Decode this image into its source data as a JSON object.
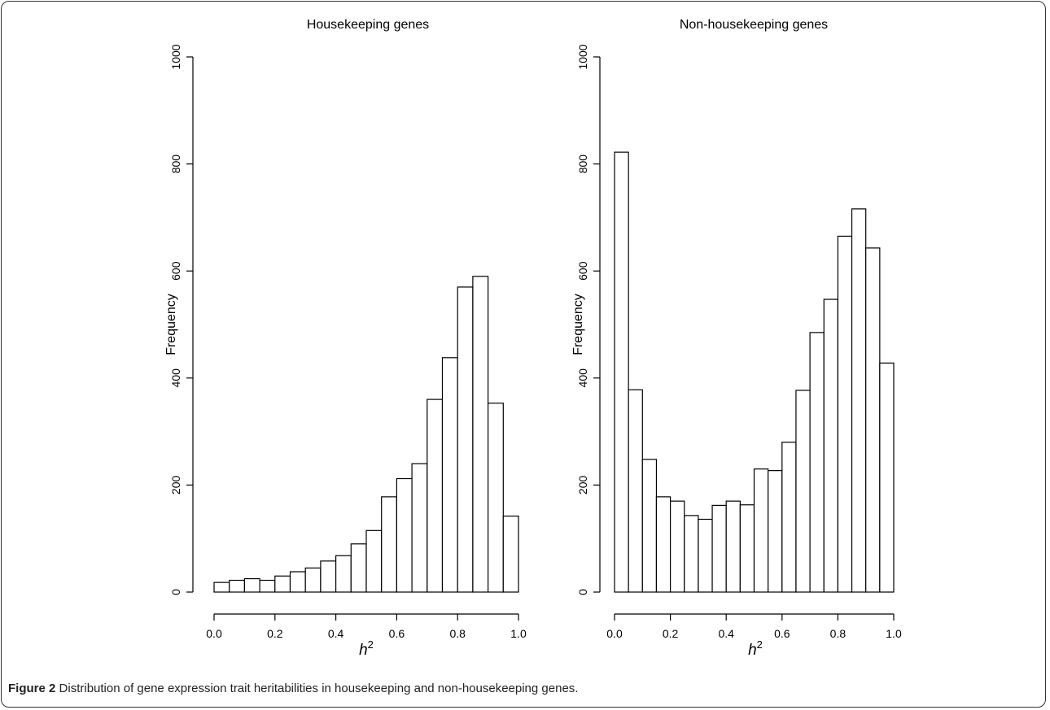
{
  "caption": {
    "label": "Figure 2",
    "text": "Distribution of gene expression trait heritabilities in housekeeping and non-housekeeping genes."
  },
  "chart_data": [
    {
      "type": "bar",
      "title": "Housekeeping genes",
      "ylabel": "Frequency",
      "xlabel": "h",
      "xlabel_sup": "2",
      "xlim": [
        0,
        1
      ],
      "ylim": [
        0,
        1000
      ],
      "xticks": [
        "0.0",
        "0.2",
        "0.4",
        "0.6",
        "0.8",
        "1.0"
      ],
      "yticks": [
        "0",
        "200",
        "400",
        "600",
        "800",
        "1000"
      ],
      "bin_width": 0.05,
      "bin_starts": [
        0.0,
        0.05,
        0.1,
        0.15,
        0.2,
        0.25,
        0.3,
        0.35,
        0.4,
        0.45,
        0.5,
        0.55,
        0.6,
        0.65,
        0.7,
        0.75,
        0.8,
        0.85,
        0.9,
        0.95
      ],
      "values": [
        18,
        22,
        25,
        22,
        30,
        38,
        45,
        58,
        68,
        90,
        115,
        178,
        212,
        240,
        360,
        438,
        570,
        590,
        353,
        142
      ]
    },
    {
      "type": "bar",
      "title": "Non-housekeeping genes",
      "ylabel": "Frequency",
      "xlabel": "h",
      "xlabel_sup": "2",
      "xlim": [
        0,
        1
      ],
      "ylim": [
        0,
        1000
      ],
      "xticks": [
        "0.0",
        "0.2",
        "0.4",
        "0.6",
        "0.8",
        "1.0"
      ],
      "yticks": [
        "0",
        "200",
        "400",
        "600",
        "800",
        "1000"
      ],
      "bin_width": 0.05,
      "bin_starts": [
        0.0,
        0.05,
        0.1,
        0.15,
        0.2,
        0.25,
        0.3,
        0.35,
        0.4,
        0.45,
        0.5,
        0.55,
        0.6,
        0.65,
        0.7,
        0.75,
        0.8,
        0.85,
        0.9,
        0.95
      ],
      "values": [
        822,
        378,
        248,
        178,
        170,
        143,
        136,
        162,
        170,
        163,
        230,
        227,
        280,
        377,
        485,
        547,
        665,
        716,
        643,
        428
      ]
    }
  ]
}
